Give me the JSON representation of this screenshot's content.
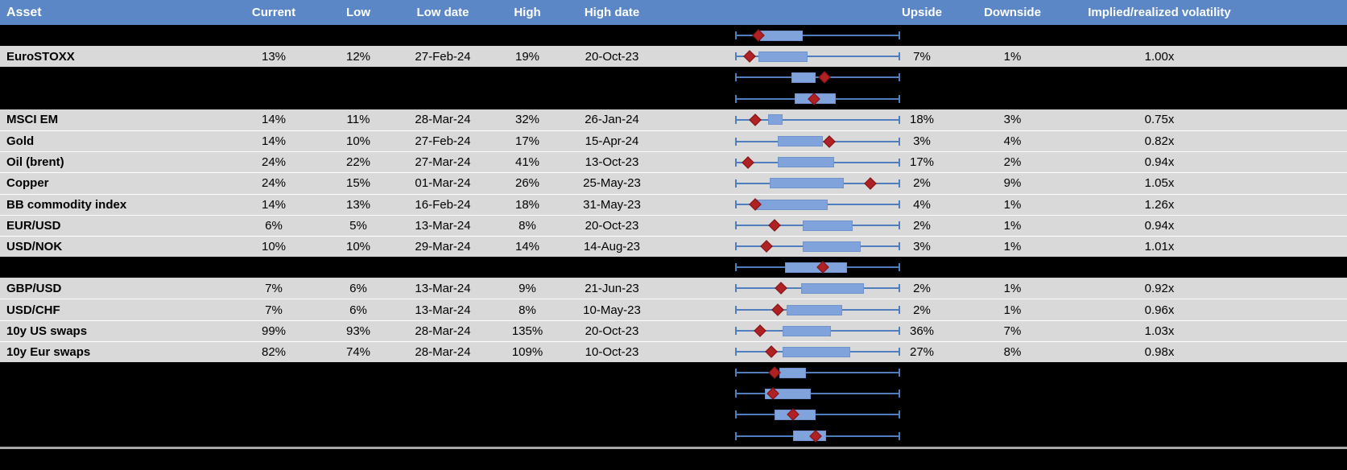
{
  "colors": {
    "header_bg": "#5B87C6",
    "header_fg": "#FFFFFF",
    "row_gray": "#D9D9D9",
    "row_black": "#000000",
    "whisker": "#4E7EBC",
    "box_fill": "#7FA3DA",
    "marker": "#B02124",
    "bottom_line": "#A6A6A6"
  },
  "chart_data": {
    "type": "table",
    "subtype": "table_with_boxplot_per_row",
    "columns": [
      "Asset",
      "Current",
      "Low",
      "Low date",
      "High",
      "High date",
      "Upside",
      "Downside",
      "Implied/realized volatility"
    ],
    "boxplot_axis": {
      "description": "Per-row horizontal box-and-whisker of 12m volatility range with red diamond = current level; positions stored as percent of whisker span",
      "range_pct": [
        0,
        100
      ],
      "legend": "none",
      "grid": "off"
    },
    "rows": [
      {
        "kind": "blank",
        "box": {
          "whisker_lo": 0,
          "whisker_hi": 100,
          "box_lo": 15,
          "box_hi": 41,
          "marker": 14
        }
      },
      {
        "kind": "data",
        "asset": "EuroSTOXX",
        "current": "13%",
        "low": "12%",
        "low_date": "27-Feb-24",
        "high": "19%",
        "high_date": "20-Oct-23",
        "upside": "7%",
        "downside": "1%",
        "ratio": "1.00x",
        "box": {
          "whisker_lo": 0,
          "whisker_hi": 100,
          "box_lo": 14,
          "box_hi": 44,
          "marker": 9
        }
      },
      {
        "kind": "blank",
        "box": {
          "whisker_lo": 0,
          "whisker_hi": 100,
          "box_lo": 34,
          "box_hi": 49,
          "marker": 54
        }
      },
      {
        "kind": "blank",
        "box": {
          "whisker_lo": 0,
          "whisker_hi": 100,
          "box_lo": 36,
          "box_hi": 61,
          "marker": 48
        }
      },
      {
        "kind": "data",
        "asset": "MSCI EM",
        "current": "14%",
        "low": "11%",
        "low_date": "28-Mar-24",
        "high": "32%",
        "high_date": "26-Jan-24",
        "upside": "18%",
        "downside": "3%",
        "ratio": "0.75x",
        "box": {
          "whisker_lo": 0,
          "whisker_hi": 100,
          "box_lo": 20,
          "box_hi": 29,
          "marker": 12
        }
      },
      {
        "kind": "data",
        "asset": "Gold",
        "current": "14%",
        "low": "10%",
        "low_date": "27-Feb-24",
        "high": "17%",
        "high_date": "15-Apr-24",
        "upside": "3%",
        "downside": "4%",
        "ratio": "0.82x",
        "box": {
          "whisker_lo": 0,
          "whisker_hi": 100,
          "box_lo": 26,
          "box_hi": 53,
          "marker": 57
        }
      },
      {
        "kind": "data",
        "asset": "Oil (brent)",
        "current": "24%",
        "low": "22%",
        "low_date": "27-Mar-24",
        "high": "41%",
        "high_date": "13-Oct-23",
        "upside": "17%",
        "downside": "2%",
        "ratio": "0.94x",
        "box": {
          "whisker_lo": 0,
          "whisker_hi": 100,
          "box_lo": 26,
          "box_hi": 60,
          "marker": 8
        }
      },
      {
        "kind": "data",
        "asset": "Copper",
        "current": "24%",
        "low": "15%",
        "low_date": "01-Mar-24",
        "high": "26%",
        "high_date": "25-May-23",
        "upside": "2%",
        "downside": "9%",
        "ratio": "1.05x",
        "box": {
          "whisker_lo": 0,
          "whisker_hi": 100,
          "box_lo": 21,
          "box_hi": 66,
          "marker": 82
        }
      },
      {
        "kind": "data",
        "asset": "BB commodity index",
        "current": "14%",
        "low": "13%",
        "low_date": "16-Feb-24",
        "high": "18%",
        "high_date": "31-May-23",
        "upside": "4%",
        "downside": "1%",
        "ratio": "1.26x",
        "box": {
          "whisker_lo": 0,
          "whisker_hi": 100,
          "box_lo": 12,
          "box_hi": 56,
          "marker": 12
        }
      },
      {
        "kind": "data",
        "asset": "EUR/USD",
        "current": "6%",
        "low": "5%",
        "low_date": "13-Mar-24",
        "high": "8%",
        "high_date": "20-Oct-23",
        "upside": "2%",
        "downside": "1%",
        "ratio": "0.94x",
        "box": {
          "whisker_lo": 0,
          "whisker_hi": 100,
          "box_lo": 41,
          "box_hi": 71,
          "marker": 24
        }
      },
      {
        "kind": "data",
        "asset": "USD/NOK",
        "current": "10%",
        "low": "10%",
        "low_date": "29-Mar-24",
        "high": "14%",
        "high_date": "14-Aug-23",
        "upside": "3%",
        "downside": "1%",
        "ratio": "1.01x",
        "box": {
          "whisker_lo": 0,
          "whisker_hi": 100,
          "box_lo": 41,
          "box_hi": 76,
          "marker": 19
        }
      },
      {
        "kind": "blank",
        "box": {
          "whisker_lo": 0,
          "whisker_hi": 100,
          "box_lo": 30,
          "box_hi": 68,
          "marker": 53
        }
      },
      {
        "kind": "data",
        "asset": "GBP/USD",
        "current": "7%",
        "low": "6%",
        "low_date": "13-Mar-24",
        "high": "9%",
        "high_date": "21-Jun-23",
        "upside": "2%",
        "downside": "1%",
        "ratio": "0.92x",
        "box": {
          "whisker_lo": 0,
          "whisker_hi": 100,
          "box_lo": 40,
          "box_hi": 78,
          "marker": 28
        }
      },
      {
        "kind": "data",
        "asset": "USD/CHF",
        "current": "7%",
        "low": "6%",
        "low_date": "13-Mar-24",
        "high": "8%",
        "high_date": "10-May-23",
        "upside": "2%",
        "downside": "1%",
        "ratio": "0.96x",
        "box": {
          "whisker_lo": 0,
          "whisker_hi": 100,
          "box_lo": 31,
          "box_hi": 65,
          "marker": 26
        }
      },
      {
        "kind": "data",
        "asset": "10y US swaps",
        "current": "99%",
        "low": "93%",
        "low_date": "28-Mar-24",
        "high": "135%",
        "high_date": "20-Oct-23",
        "upside": "36%",
        "downside": "7%",
        "ratio": "1.03x",
        "box": {
          "whisker_lo": 0,
          "whisker_hi": 100,
          "box_lo": 29,
          "box_hi": 58,
          "marker": 15
        }
      },
      {
        "kind": "data",
        "asset": "10y Eur swaps",
        "current": "82%",
        "low": "74%",
        "low_date": "28-Mar-24",
        "high": "109%",
        "high_date": "10-Oct-23",
        "upside": "27%",
        "downside": "8%",
        "ratio": "0.98x",
        "box": {
          "whisker_lo": 0,
          "whisker_hi": 100,
          "box_lo": 29,
          "box_hi": 70,
          "marker": 22
        }
      },
      {
        "kind": "blank",
        "box": {
          "whisker_lo": 0,
          "whisker_hi": 100,
          "box_lo": 27,
          "box_hi": 43,
          "marker": 24
        }
      },
      {
        "kind": "blank",
        "box": {
          "whisker_lo": 0,
          "whisker_hi": 100,
          "box_lo": 18,
          "box_hi": 46,
          "marker": 23
        }
      },
      {
        "kind": "blank",
        "box": {
          "whisker_lo": 0,
          "whisker_hi": 100,
          "box_lo": 24,
          "box_hi": 49,
          "marker": 35
        }
      },
      {
        "kind": "blank",
        "box": {
          "whisker_lo": 0,
          "whisker_hi": 100,
          "box_lo": 35,
          "box_hi": 55,
          "marker": 49
        }
      }
    ]
  }
}
